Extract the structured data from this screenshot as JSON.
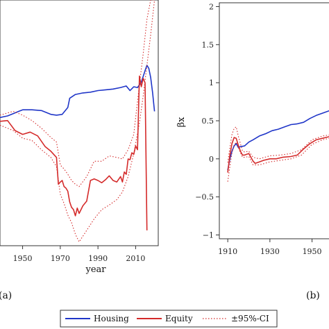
{
  "chart_data": [
    {
      "panel": "(a)",
      "type": "line",
      "xlabel": "year",
      "ylabel": "",
      "xlim": [
        1938,
        2022
      ],
      "ylim": [
        -1.15,
        2.05
      ],
      "xticks": [
        1950,
        1970,
        1990,
        2010
      ],
      "xtick_labels": [
        "1950",
        "1970",
        "1990",
        "2010"
      ],
      "series": [
        {
          "name": "Housing",
          "color": "#1f35c8",
          "x": [
            1938,
            1942,
            1945,
            1948,
            1950,
            1955,
            1960,
            1965,
            1968,
            1971,
            1974,
            1975,
            1978,
            1982,
            1986,
            1990,
            1994,
            1998,
            2002,
            2005,
            2007,
            2009,
            2011,
            2013,
            2015,
            2016,
            2017,
            2018,
            2019,
            2020
          ],
          "y": [
            0.52,
            0.54,
            0.57,
            0.6,
            0.62,
            0.62,
            0.61,
            0.56,
            0.55,
            0.56,
            0.65,
            0.77,
            0.82,
            0.84,
            0.85,
            0.87,
            0.88,
            0.89,
            0.91,
            0.93,
            0.87,
            0.92,
            0.91,
            0.98,
            1.13,
            1.2,
            1.16,
            1.04,
            0.84,
            0.6
          ]
        },
        {
          "name": "Equity",
          "color": "#d42a2a",
          "x": [
            1938,
            1942,
            1946,
            1950,
            1954,
            1958,
            1962,
            1965,
            1968,
            1969,
            1970,
            1971,
            1972,
            1973,
            1974,
            1975,
            1976,
            1977,
            1978,
            1979,
            1980,
            1982,
            1984,
            1986,
            1988,
            1990,
            1992,
            1994,
            1996,
            1998,
            2000,
            2002,
            2003,
            2004,
            2005,
            2006,
            2007,
            2008,
            2009,
            2010,
            2011,
            2012,
            2013,
            2014,
            2015,
            2016
          ],
          "y": [
            0.47,
            0.48,
            0.35,
            0.3,
            0.33,
            0.28,
            0.14,
            0.08,
            0.0,
            -0.35,
            -0.32,
            -0.3,
            -0.38,
            -0.4,
            -0.44,
            -0.58,
            -0.65,
            -0.68,
            -0.76,
            -0.66,
            -0.73,
            -0.63,
            -0.57,
            -0.3,
            -0.28,
            -0.3,
            -0.33,
            -0.29,
            -0.24,
            -0.3,
            -0.32,
            -0.25,
            -0.32,
            -0.19,
            -0.22,
            -0.02,
            -0.03,
            0.06,
            0.04,
            0.15,
            0.1,
            1.06,
            0.92,
            1.03,
            0.97,
            -0.95
          ]
        },
        {
          "name": "±95%-CI",
          "color": "#d42a2a",
          "style": "dotted",
          "x": [
            1938,
            1945,
            1950,
            1955,
            1960,
            1965,
            1968,
            1970,
            1972,
            1974,
            1976,
            1978,
            1980,
            1984,
            1988,
            1992,
            1996,
            2000,
            2003,
            2006,
            2009,
            2012,
            2014,
            2016,
            2018,
            2020
          ],
          "y": [
            0.42,
            0.35,
            0.25,
            0.22,
            0.1,
            0.0,
            -0.12,
            -0.48,
            -0.6,
            -0.75,
            -0.85,
            -1.0,
            -1.1,
            -0.95,
            -0.8,
            -0.68,
            -0.62,
            -0.55,
            -0.45,
            -0.25,
            0.05,
            0.45,
            0.8,
            1.2,
            1.6,
            2.05
          ]
        },
        {
          "name": "±95%-CI",
          "color": "#d42a2a",
          "style": "dotted",
          "x": [
            1938,
            1945,
            1950,
            1955,
            1960,
            1965,
            1968,
            1970,
            1972,
            1974,
            1976,
            1978,
            1980,
            1984,
            1988,
            1992,
            1996,
            2000,
            2003,
            2006,
            2009,
            2012,
            2014,
            2016,
            2018,
            2020
          ],
          "y": [
            0.55,
            0.6,
            0.55,
            0.48,
            0.38,
            0.26,
            0.2,
            -0.1,
            -0.15,
            -0.22,
            -0.3,
            -0.35,
            -0.38,
            -0.25,
            -0.05,
            -0.05,
            0.02,
            0.0,
            -0.02,
            0.1,
            0.3,
            0.95,
            1.35,
            1.8,
            2.05,
            2.05
          ]
        }
      ]
    },
    {
      "panel": "(b)",
      "type": "line",
      "xlabel": "",
      "ylabel": "βx",
      "xlim": [
        1906,
        1962
      ],
      "ylim": [
        -1.05,
        2.05
      ],
      "xticks": [
        1910,
        1930,
        1950
      ],
      "xtick_labels": [
        "1910",
        "1930",
        "1950"
      ],
      "yticks": [
        -1,
        -0.5,
        0,
        0.5,
        1,
        1.5,
        2
      ],
      "ytick_labels": [
        "−1",
        "−0.5",
        "0",
        "0.5",
        "1",
        "1.5",
        "2"
      ],
      "series": [
        {
          "name": "Housing",
          "color": "#1f35c8",
          "x": [
            1910,
            1911,
            1912,
            1913,
            1914,
            1915,
            1916,
            1918,
            1920,
            1922,
            1925,
            1928,
            1931,
            1934,
            1937,
            1940,
            1943,
            1946,
            1949,
            1952,
            1955,
            1958,
            1960,
            1962
          ],
          "y": [
            -0.15,
            0.0,
            0.1,
            0.17,
            0.2,
            0.15,
            0.16,
            0.17,
            0.22,
            0.25,
            0.3,
            0.33,
            0.37,
            0.39,
            0.42,
            0.45,
            0.46,
            0.48,
            0.53,
            0.57,
            0.6,
            0.63,
            0.65,
            0.67
          ]
        },
        {
          "name": "Equity",
          "color": "#d42a2a",
          "x": [
            1910,
            1911,
            1912,
            1913,
            1914,
            1915,
            1916,
            1917,
            1918,
            1919,
            1920,
            1921,
            1922,
            1923,
            1925,
            1927,
            1930,
            1933,
            1936,
            1940,
            1943,
            1946,
            1949,
            1952,
            1955,
            1958,
            1960,
            1962
          ],
          "y": [
            -0.18,
            0.05,
            0.2,
            0.28,
            0.27,
            0.18,
            0.1,
            0.05,
            0.05,
            0.06,
            0.07,
            0.02,
            -0.03,
            -0.06,
            -0.04,
            -0.02,
            0.0,
            0.0,
            0.02,
            0.03,
            0.05,
            0.13,
            0.2,
            0.25,
            0.27,
            0.29,
            0.3,
            0.3
          ]
        },
        {
          "name": "±95%-CI",
          "color": "#d42a2a",
          "style": "dotted",
          "x": [
            1910,
            1911,
            1912,
            1913,
            1914,
            1915,
            1916,
            1917,
            1918,
            1920,
            1922,
            1925,
            1930,
            1935,
            1940,
            1945,
            1950,
            1955,
            1960,
            1962
          ],
          "y": [
            -0.3,
            -0.1,
            0.08,
            0.18,
            0.22,
            0.15,
            0.08,
            0.02,
            0.02,
            0.03,
            -0.08,
            -0.08,
            -0.04,
            -0.02,
            0.0,
            0.05,
            0.19,
            0.25,
            0.28,
            0.28
          ]
        },
        {
          "name": "±95%-CI",
          "color": "#d42a2a",
          "style": "dotted",
          "x": [
            1910,
            1911,
            1912,
            1913,
            1914,
            1915,
            1916,
            1917,
            1918,
            1920,
            1922,
            1925,
            1930,
            1935,
            1940,
            1945,
            1950,
            1955,
            1960,
            1962
          ],
          "y": [
            -0.05,
            0.15,
            0.32,
            0.4,
            0.42,
            0.3,
            0.2,
            0.1,
            0.09,
            0.1,
            0.02,
            0.0,
            0.04,
            0.05,
            0.07,
            0.12,
            0.25,
            0.3,
            0.32,
            0.32
          ]
        }
      ]
    }
  ],
  "legend": {
    "items": [
      {
        "label": "Housing",
        "color": "#1f35c8",
        "style": "solid"
      },
      {
        "label": "Equity",
        "color": "#d42a2a",
        "style": "solid"
      },
      {
        "label": "±95%-CI",
        "color": "#d42a2a",
        "style": "dotted"
      }
    ],
    "placement": "bottom-center"
  }
}
